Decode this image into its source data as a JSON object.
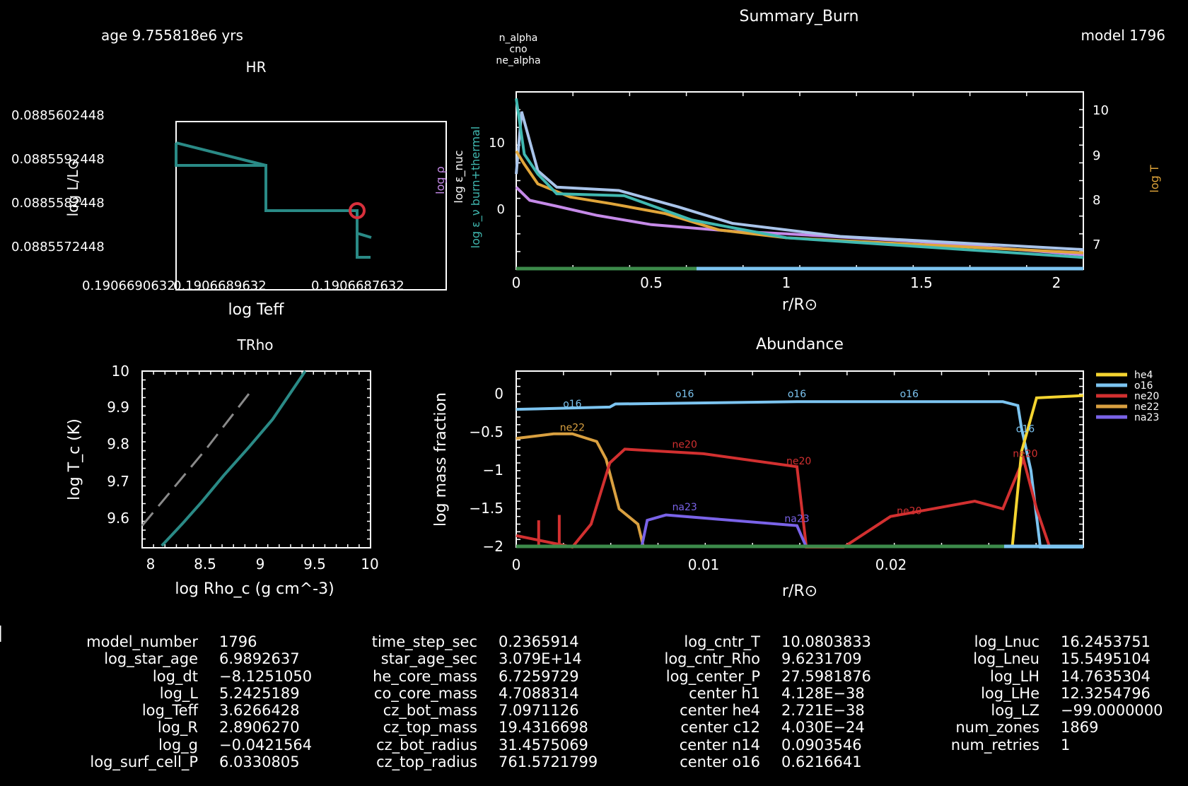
{
  "header": {
    "title": "Summary_Burn",
    "age_label": "age 9.755818e6 yrs",
    "model_label": "model 1796"
  },
  "colors": {
    "teal": "#2a8a86",
    "purple": "#c58ae8",
    "lightblue": "#a9c4ea",
    "orange": "#e0a53a",
    "cyan": "#40b8b0",
    "he4": "#f4d430",
    "o16": "#7cc4f0",
    "ne20": "#d23030",
    "ne22": "#d9a040",
    "na23": "#7a63e8",
    "green": "#3c8a4a",
    "gray": "#8a8a8a"
  },
  "hr": {
    "title": "HR",
    "xlabel": "log Teff",
    "ylabel": "log L/L⊙",
    "yticks": [
      "0.0885602448",
      "0.0885592448",
      "0.0885582448",
      "0.0885572448"
    ],
    "xticks": [
      "0.1906690632",
      "0.1906689632",
      "0.1906687632"
    ]
  },
  "trho": {
    "title": "TRho",
    "xlabel": "log Rho_c (g cm^-3)",
    "ylabel": "log T_c (K)",
    "xticks": [
      "8",
      "8.5",
      "9",
      "9.5",
      "10"
    ],
    "yticks": [
      "9.6",
      "9.7",
      "9.8",
      "9.9",
      "10"
    ]
  },
  "burn": {
    "legend": [
      "n_alpha",
      "cno",
      "ne_alpha"
    ],
    "xlabel": "r/R⊙",
    "right_label": "log T",
    "left_labels": [
      "log ρ",
      "log ε_nuc",
      "log ε_ν burn+thermal"
    ],
    "xticks": [
      "0",
      "0.5",
      "1",
      "1.5",
      "2"
    ],
    "yticks_left": [
      "10",
      "0"
    ],
    "yticks_right": [
      "10",
      "9",
      "8",
      "7"
    ]
  },
  "abund": {
    "title": "Abundance",
    "xlabel": "r/R⊙",
    "ylabel": "log mass fraction",
    "xticks": [
      "0",
      "0.01",
      "0.02"
    ],
    "yticks": [
      "0",
      "−0.5",
      "−1",
      "−1.5",
      "−2"
    ],
    "legend": [
      "he4",
      "o16",
      "ne20",
      "ne22",
      "na23"
    ],
    "inline_labels": [
      "o16",
      "o16",
      "o16",
      "o16",
      "ne22",
      "ne20",
      "ne20",
      "na23",
      "na23",
      "ne20",
      "ne20",
      "o16"
    ]
  },
  "chart_data": [
    {
      "type": "line",
      "title": "HR",
      "xlabel": "log Teff",
      "ylabel": "log L/L⊙",
      "series": [
        {
          "points": [
            [
              0.1906689,
              0.08855963
            ],
            [
              0.1906689,
              0.0885593
            ],
            [
              0.19066895,
              0.08855935
            ],
            [
              0.19066895,
              0.0885588
            ],
            [
              0.19066898,
              0.0885588
            ],
            [
              0.19066898,
              0.0885583
            ],
            [
              0.190669,
              0.0885583
            ],
            [
              0.19066898,
              0.0885587
            ]
          ]
        }
      ]
    },
    {
      "type": "line",
      "title": "TRho",
      "xlabel": "log Rho_c (g cm^-3)",
      "ylabel": "log T_c (K)",
      "xlim": [
        7.9,
        10
      ],
      "ylim": [
        9.56,
        10
      ],
      "series": [
        {
          "points": [
            [
              8.08,
              9.565
            ],
            [
              8.27,
              9.62
            ],
            [
              8.45,
              9.675
            ],
            [
              8.65,
              9.74
            ],
            [
              8.88,
              9.81
            ],
            [
              9.1,
              9.88
            ],
            [
              9.4,
              10.0
            ]
          ]
        },
        {
          "points": [
            [
              7.9,
              9.615
            ],
            [
              8.1,
              9.68
            ],
            [
              8.3,
              9.745
            ],
            [
              8.5,
              9.81
            ],
            [
              8.7,
              9.88
            ],
            [
              8.9,
              9.95
            ]
          ]
        }
      ]
    },
    {
      "type": "line",
      "title": "Summary_Burn",
      "xlabel": "r/R⊙",
      "xlim": [
        0,
        2.1
      ],
      "series": [
        {
          "name": "log ρ",
          "points": [
            [
              0,
              3.5
            ],
            [
              0.05,
              1.5
            ],
            [
              0.15,
              0.6
            ],
            [
              0.3,
              -0.8
            ],
            [
              0.5,
              -2.2
            ],
            [
              0.8,
              -3.2
            ],
            [
              1.0,
              -3.6
            ],
            [
              1.5,
              -4.8
            ],
            [
              2.1,
              -6.8
            ]
          ]
        },
        {
          "name": "log T",
          "points": [
            [
              0,
              5.5
            ],
            [
              0.02,
              15
            ],
            [
              0.08,
              6
            ],
            [
              0.15,
              3.5
            ],
            [
              0.38,
              3.0
            ],
            [
              0.6,
              0.5
            ],
            [
              0.8,
              -2.0
            ],
            [
              1.2,
              -4.0
            ],
            [
              2.1,
              -6.0
            ]
          ]
        },
        {
          "name": "log ε_nuc",
          "points": [
            [
              0,
              9
            ],
            [
              0.03,
              7
            ],
            [
              0.08,
              4
            ],
            [
              0.2,
              2.0
            ],
            [
              0.35,
              1.0
            ],
            [
              0.55,
              -0.5
            ],
            [
              0.75,
              -3.0
            ],
            [
              1.0,
              -4.2
            ],
            [
              2.1,
              -6.5
            ]
          ]
        },
        {
          "name": "log ε_ν burn+thermal",
          "points": [
            [
              0,
              17
            ],
            [
              0.03,
              8.5
            ],
            [
              0.08,
              5.5
            ],
            [
              0.15,
              2.5
            ],
            [
              0.4,
              2.2
            ],
            [
              0.65,
              -1.5
            ],
            [
              1.0,
              -4.2
            ],
            [
              2.1,
              -7.2
            ]
          ]
        }
      ]
    },
    {
      "type": "line",
      "title": "Abundance",
      "xlabel": "r/R⊙",
      "ylabel": "log mass fraction",
      "xlim": [
        0,
        0.0303
      ],
      "ylim": [
        -2,
        0.3
      ],
      "legend": "top-right",
      "series": [
        {
          "name": "o16",
          "points": [
            [
              0,
              -0.2
            ],
            [
              0.005,
              -0.17
            ],
            [
              0.0053,
              -0.13
            ],
            [
              0.015,
              -0.1
            ],
            [
              0.026,
              -0.1
            ],
            [
              0.0268,
              -0.15
            ],
            [
              0.027,
              -0.45
            ],
            [
              0.0275,
              -1.0
            ],
            [
              0.028,
              -2.0
            ],
            [
              0.0303,
              -2.0
            ]
          ]
        },
        {
          "name": "ne22",
          "points": [
            [
              0,
              -0.58
            ],
            [
              0.002,
              -0.52
            ],
            [
              0.003,
              -0.52
            ],
            [
              0.0043,
              -0.62
            ],
            [
              0.0048,
              -0.85
            ],
            [
              0.0055,
              -1.5
            ],
            [
              0.0065,
              -1.7
            ],
            [
              0.0068,
              -2.0
            ]
          ]
        },
        {
          "name": "ne20",
          "points": [
            [
              0,
              -1.85
            ],
            [
              0.003,
              -2.0
            ],
            [
              0.004,
              -1.7
            ],
            [
              0.0045,
              -1.3
            ],
            [
              0.005,
              -0.9
            ],
            [
              0.0058,
              -0.72
            ],
            [
              0.01,
              -0.78
            ],
            [
              0.015,
              -0.95
            ],
            [
              0.0155,
              -2.0
            ],
            [
              0.0175,
              -2.0
            ],
            [
              0.02,
              -1.6
            ],
            [
              0.0245,
              -1.4
            ],
            [
              0.026,
              -1.5
            ],
            [
              0.0265,
              -1.2
            ],
            [
              0.0271,
              -0.85
            ],
            [
              0.0278,
              -1.5
            ],
            [
              0.0285,
              -2.0
            ]
          ]
        },
        {
          "name": "na23",
          "points": [
            [
              0.0067,
              -2.0
            ],
            [
              0.007,
              -1.65
            ],
            [
              0.008,
              -1.58
            ],
            [
              0.015,
              -1.72
            ],
            [
              0.0155,
              -2.0
            ]
          ]
        },
        {
          "name": "he4",
          "points": [
            [
              0.0265,
              -2.0
            ],
            [
              0.027,
              -0.75
            ],
            [
              0.0278,
              -0.05
            ],
            [
              0.0303,
              -0.02
            ]
          ]
        }
      ]
    }
  ],
  "info_columns": [
    {
      "keys": [
        "model_number",
        "log_star_age",
        "log_dt",
        "log_L",
        "log_Teff",
        "log_R",
        "log_g",
        "log_surf_cell_P"
      ],
      "values": [
        "1796",
        "6.9892637",
        "−8.1251050",
        "5.2425189",
        "3.6266428",
        "2.8906270",
        "−0.0421564",
        "6.0330805"
      ]
    },
    {
      "keys": [
        "time_step_sec",
        "star_age_sec",
        "he_core_mass",
        "co_core_mass",
        "cz_bot_mass",
        "cz_top_mass",
        "cz_bot_radius",
        "cz_top_radius"
      ],
      "values": [
        "0.2365914",
        "3.079E+14",
        "6.7259729",
        "4.7088314",
        "7.0971126",
        "19.4316698",
        "31.4575069",
        "761.5721799"
      ]
    },
    {
      "keys": [
        "log_cntr_T",
        "log_cntr_Rho",
        "log_center_P",
        "center h1",
        "center he4",
        "center c12",
        "center n14",
        "center o16"
      ],
      "values": [
        "10.0803833",
        "9.6231709",
        "27.5981876",
        "4.128E−38",
        "2.721E−38",
        "4.030E−24",
        "0.0903546",
        "0.6216641"
      ]
    },
    {
      "keys": [
        "log_Lnuc",
        "log_Lneu",
        "log_LH",
        "log_LHe",
        "log_LZ",
        "num_zones",
        "num_retries"
      ],
      "values": [
        "16.2453751",
        "15.5495104",
        "14.7635304",
        "12.3254796",
        "−99.0000000",
        "1869",
        "1"
      ]
    }
  ]
}
